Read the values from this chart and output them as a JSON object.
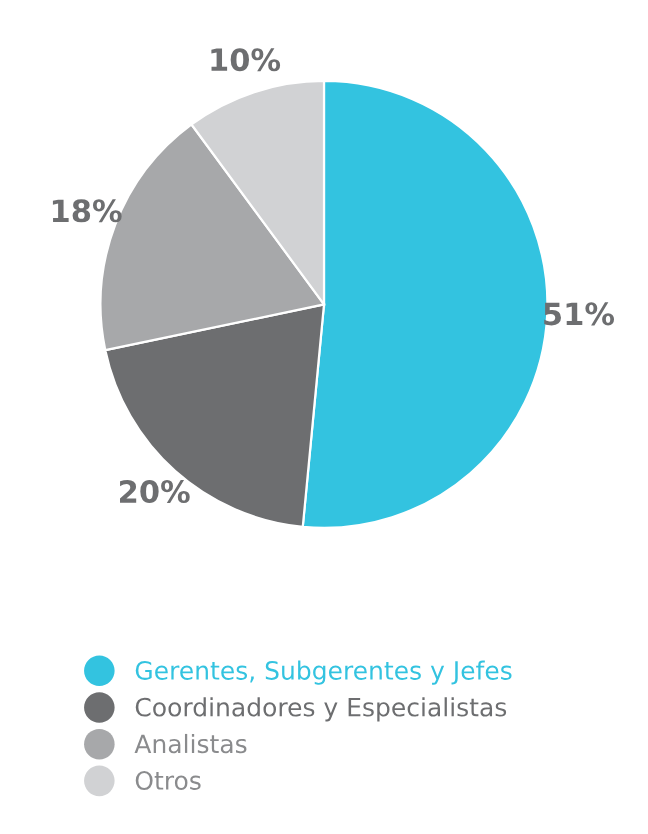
{
  "chart_data": {
    "type": "pie",
    "categories": [
      "Gerentes, Subgerentes y Jefes",
      "Coordinadores y Especialistas",
      "Analistas",
      "Otros"
    ],
    "values": [
      51,
      20,
      18,
      10
    ],
    "colors": [
      "#33c3e0",
      "#6d6e70",
      "#a7a8aa",
      "#d1d2d4"
    ],
    "value_labels": [
      "51%",
      "20%",
      "18%",
      "10%"
    ],
    "legend": "bottom"
  }
}
